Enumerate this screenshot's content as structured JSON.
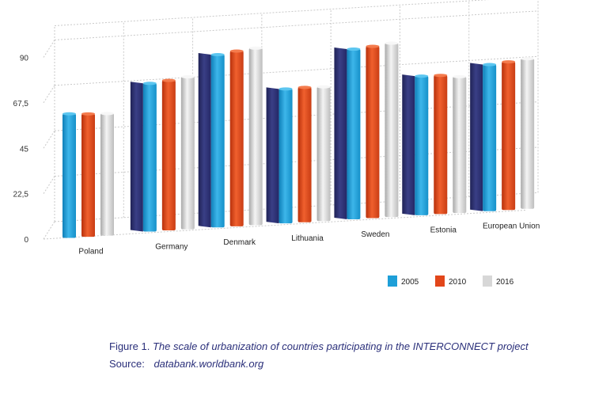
{
  "chart_data": {
    "type": "bar",
    "categories": [
      "Poland",
      "Germany",
      "Denmark",
      "Lithuania",
      "Sweden",
      "Estonia",
      "European Union"
    ],
    "series": [
      {
        "name": "2005",
        "values": [
          61.5,
          73.4,
          85.6,
          66.6,
          84.3,
          68.9,
          72.6
        ]
      },
      {
        "name": "2010",
        "values": [
          60.9,
          74.3,
          86.8,
          66.8,
          85.1,
          68.7,
          73.4
        ]
      },
      {
        "name": "2016",
        "values": [
          60.5,
          75.5,
          87.7,
          66.5,
          86.1,
          67.5,
          74.4
        ]
      }
    ],
    "y_ticks": [
      "0",
      "22,5",
      "45",
      "67,5",
      "90"
    ],
    "ylim": [
      0,
      90
    ],
    "legend_position": "bottom-right",
    "grid": true,
    "colors": {
      "2005": "#1e9fd8",
      "2010": "#e2461a",
      "2016": "#d7d7d7",
      "depth": "#2b2f6b",
      "grid": "#c9c9c9"
    }
  },
  "caption": {
    "figure_label": "Figure 1.",
    "figure_text": "The scale of urbanization of countries participating in the INTERCONNECT project",
    "source_label": "Source:",
    "source_value": "databank.worldbank.org"
  }
}
